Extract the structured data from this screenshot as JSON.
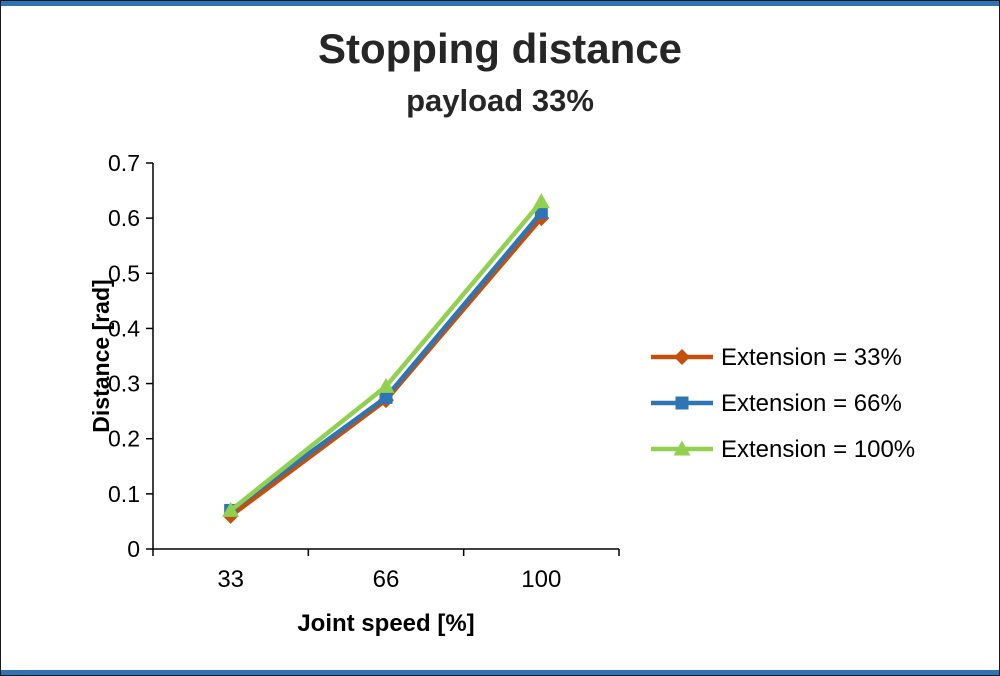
{
  "frame": {
    "edge_color": "#2e74b5",
    "border_color": "#1a1a1a"
  },
  "chart_data": {
    "type": "line",
    "title": "Stopping distance",
    "subtitle": "payload 33%",
    "xlabel": "Joint speed [%]",
    "ylabel": "Distance [rad]",
    "categories": [
      "33",
      "66",
      "100"
    ],
    "yticks": [
      "0",
      "0.1",
      "0.2",
      "0.3",
      "0.4",
      "0.5",
      "0.6",
      "0.7"
    ],
    "ylim": [
      0,
      0.7
    ],
    "grid": false,
    "legend_position": "right",
    "series": [
      {
        "name": "Extension = 33%",
        "marker": "diamond",
        "color": "#c4500e",
        "values": [
          0.06,
          0.27,
          0.6
        ]
      },
      {
        "name": "Extension = 66%",
        "marker": "square",
        "color": "#2e75b6",
        "values": [
          0.07,
          0.275,
          0.61
        ]
      },
      {
        "name": "Extension = 100%",
        "marker": "triangle",
        "color": "#92d050",
        "values": [
          0.07,
          0.295,
          0.63
        ]
      }
    ]
  }
}
